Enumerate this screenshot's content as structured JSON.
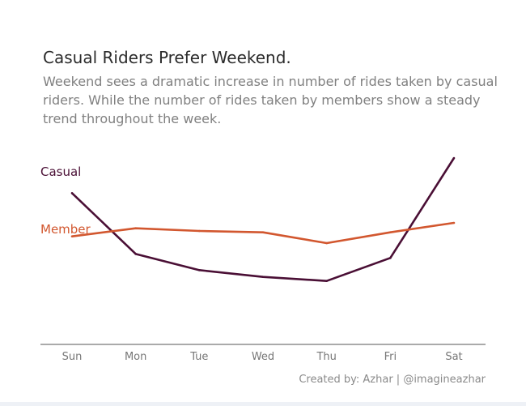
{
  "title": "Casual Riders Prefer Weekend.",
  "subtitle": "Weekend sees a dramatic increase in number of rides taken by casual riders. While the number of rides taken by members show a steady trend throughout the week.",
  "credit": "Created by: Azhar | @imagineazhar",
  "colors": {
    "casual": "#4a0f35",
    "member": "#d2572f",
    "axis": "#555555"
  },
  "chart_data": {
    "type": "line",
    "categories": [
      "Sun",
      "Mon",
      "Tue",
      "Wed",
      "Thu",
      "Fri",
      "Sat"
    ],
    "series": [
      {
        "name": "Casual",
        "values": [
          560,
          335,
          275,
          250,
          235,
          320,
          690
        ]
      },
      {
        "name": "Member",
        "values": [
          400,
          430,
          420,
          415,
          375,
          415,
          450
        ]
      }
    ],
    "ylim": [
      0,
      735
    ],
    "grid": false,
    "legend": "inline-left"
  }
}
